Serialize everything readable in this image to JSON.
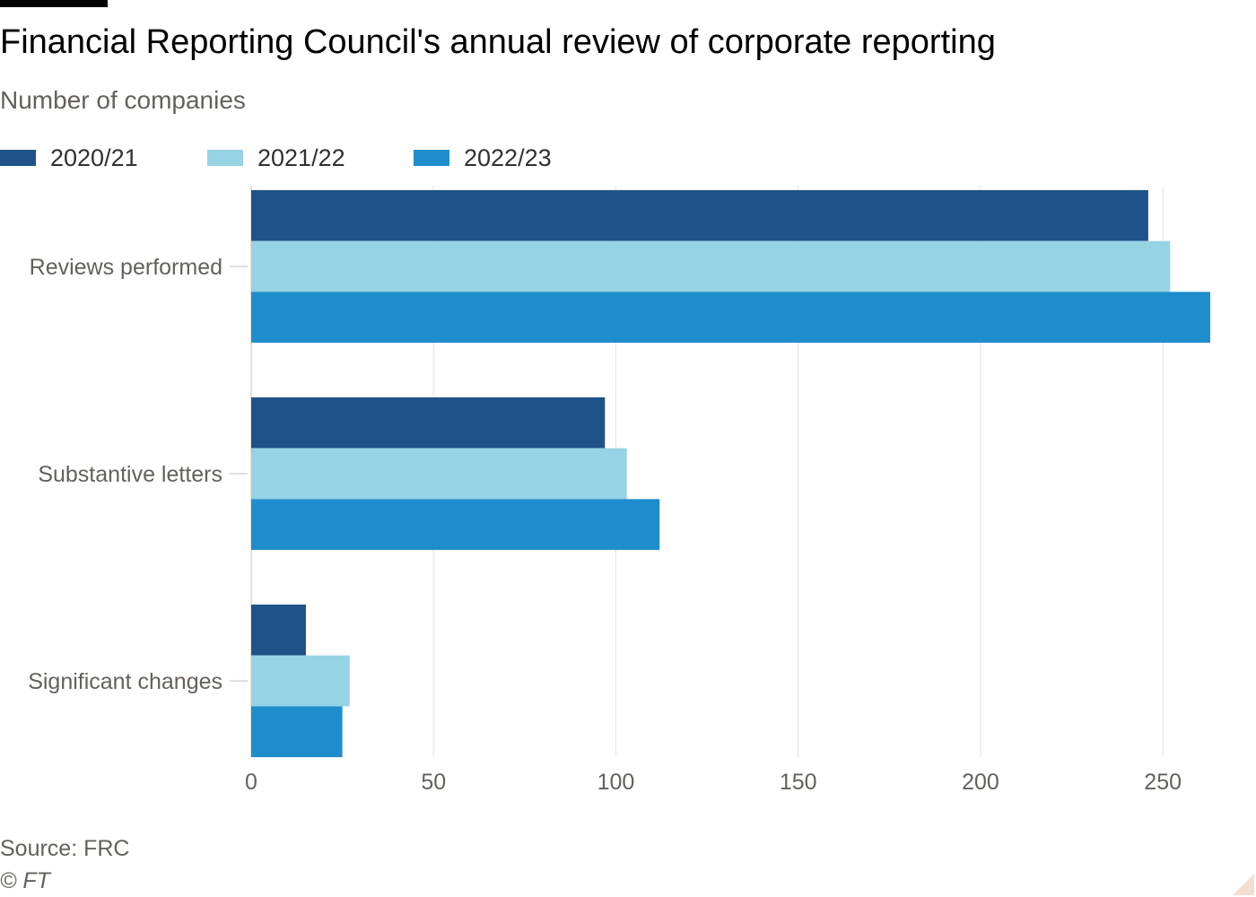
{
  "title": "Financial Reporting Council's annual review of corporate reporting",
  "subtitle": "Number of companies",
  "source": "Source: FRC",
  "copyright": "© FT",
  "colors": {
    "series": [
      "#1f5289",
      "#96d3e5",
      "#1e8dcc"
    ],
    "grid": "#e6e1dc",
    "text": "#66605c",
    "top_rule": "#000000"
  },
  "chart_data": {
    "type": "bar",
    "orientation": "horizontal",
    "categories": [
      "Reviews performed",
      "Substantive letters",
      "Significant changes"
    ],
    "series": [
      {
        "name": "2020/21",
        "values": [
          246,
          97,
          15
        ]
      },
      {
        "name": "2021/22",
        "values": [
          252,
          103,
          27
        ]
      },
      {
        "name": "2022/23",
        "values": [
          263,
          112,
          25
        ]
      }
    ],
    "xlim": [
      0,
      263
    ],
    "xticks": [
      0,
      50,
      100,
      150,
      200,
      250
    ],
    "grid": true,
    "legend": "top-left"
  }
}
